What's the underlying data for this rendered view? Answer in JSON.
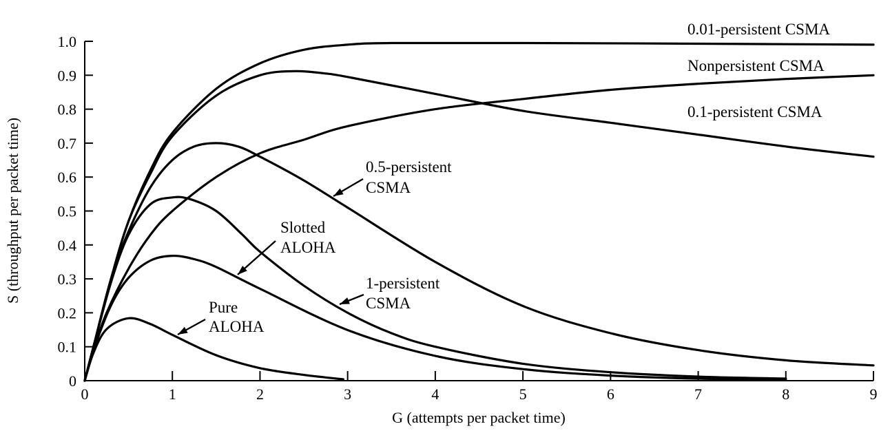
{
  "chart_data": {
    "type": "line",
    "xlabel": "G (attempts  per packet time)",
    "ylabel": "S (throughput  per packet  time)",
    "xlim": [
      0,
      9
    ],
    "ylim": [
      0,
      1.0
    ],
    "x_ticks": [
      "0",
      "1",
      "2",
      "3",
      "4",
      "5",
      "6",
      "7",
      "8",
      "9"
    ],
    "y_ticks": [
      "0",
      "0.1",
      "0.2",
      "0.3",
      "0.4",
      "0.5",
      "0.6",
      "0.7",
      "0.8",
      "0.9",
      "1.0"
    ],
    "grid": false,
    "series": [
      {
        "name": "Pure ALOHA",
        "label_lines": [
          "Pure",
          "ALOHA"
        ],
        "points": [
          [
            0,
            0
          ],
          [
            0.1,
            0.082
          ],
          [
            0.25,
            0.152
          ],
          [
            0.5,
            0.184
          ],
          [
            0.75,
            0.167
          ],
          [
            1.0,
            0.135
          ],
          [
            1.5,
            0.075
          ],
          [
            2.0,
            0.037
          ],
          [
            2.5,
            0.017
          ],
          [
            2.95,
            0.004
          ]
        ]
      },
      {
        "name": "Slotted ALOHA",
        "label_lines": [
          "Slotted",
          "ALOHA"
        ],
        "points": [
          [
            0,
            0
          ],
          [
            0.1,
            0.09
          ],
          [
            0.3,
            0.222
          ],
          [
            0.5,
            0.303
          ],
          [
            0.75,
            0.354
          ],
          [
            1.0,
            0.368
          ],
          [
            1.25,
            0.358
          ],
          [
            1.5,
            0.335
          ],
          [
            2.0,
            0.271
          ],
          [
            3.0,
            0.149
          ],
          [
            4.0,
            0.073
          ],
          [
            5.0,
            0.034
          ],
          [
            6.0,
            0.015
          ],
          [
            7.0,
            0.006
          ],
          [
            8.0,
            0.003
          ]
        ]
      },
      {
        "name": "1-persistent CSMA",
        "label_lines": [
          "1-persistent",
          "CSMA"
        ],
        "points": [
          [
            0,
            0
          ],
          [
            0.1,
            0.1
          ],
          [
            0.3,
            0.29
          ],
          [
            0.5,
            0.43
          ],
          [
            0.75,
            0.52
          ],
          [
            1.0,
            0.54
          ],
          [
            1.2,
            0.535
          ],
          [
            1.5,
            0.5
          ],
          [
            1.8,
            0.43
          ],
          [
            2.0,
            0.38
          ],
          [
            2.5,
            0.28
          ],
          [
            3.0,
            0.2
          ],
          [
            3.5,
            0.14
          ],
          [
            4.0,
            0.1
          ],
          [
            5.0,
            0.05
          ],
          [
            6.0,
            0.025
          ],
          [
            7.0,
            0.012
          ],
          [
            8.0,
            0.006
          ]
        ]
      },
      {
        "name": "0.5-persistent CSMA",
        "label_lines": [
          "0.5-persistent",
          "CSMA"
        ],
        "points": [
          [
            0,
            0
          ],
          [
            0.1,
            0.1
          ],
          [
            0.3,
            0.3
          ],
          [
            0.5,
            0.44
          ],
          [
            0.75,
            0.57
          ],
          [
            1.0,
            0.65
          ],
          [
            1.25,
            0.69
          ],
          [
            1.5,
            0.7
          ],
          [
            1.75,
            0.69
          ],
          [
            2.0,
            0.66
          ],
          [
            2.5,
            0.59
          ],
          [
            3.0,
            0.51
          ],
          [
            4.0,
            0.35
          ],
          [
            5.0,
            0.22
          ],
          [
            6.0,
            0.14
          ],
          [
            7.0,
            0.09
          ],
          [
            8.0,
            0.06
          ],
          [
            9.0,
            0.045
          ]
        ]
      },
      {
        "name": "Nonpersistent CSMA",
        "label_lines": [
          "Nonpersistent",
          "CSMA"
        ],
        "points": [
          [
            0,
            0
          ],
          [
            0.1,
            0.09
          ],
          [
            0.25,
            0.2
          ],
          [
            0.5,
            0.33
          ],
          [
            0.75,
            0.43
          ],
          [
            1.0,
            0.5
          ],
          [
            1.5,
            0.6
          ],
          [
            2.0,
            0.67
          ],
          [
            2.5,
            0.71
          ],
          [
            3.0,
            0.75
          ],
          [
            4.0,
            0.8
          ],
          [
            5.0,
            0.83
          ],
          [
            6.0,
            0.857
          ],
          [
            7.0,
            0.875
          ],
          [
            8.0,
            0.889
          ],
          [
            9.0,
            0.9
          ]
        ]
      },
      {
        "name": "0.1-persistent CSMA",
        "label_lines": [
          "0.1-persistent",
          "CSMA"
        ],
        "points": [
          [
            0,
            0
          ],
          [
            0.1,
            0.1
          ],
          [
            0.3,
            0.3
          ],
          [
            0.5,
            0.47
          ],
          [
            0.75,
            0.61
          ],
          [
            1.0,
            0.72
          ],
          [
            1.5,
            0.84
          ],
          [
            2.0,
            0.9
          ],
          [
            2.4,
            0.912
          ],
          [
            2.75,
            0.905
          ],
          [
            3.0,
            0.895
          ],
          [
            4.0,
            0.845
          ],
          [
            5.0,
            0.795
          ],
          [
            6.0,
            0.76
          ],
          [
            7.0,
            0.725
          ],
          [
            8.0,
            0.69
          ],
          [
            9.0,
            0.66
          ]
        ]
      },
      {
        "name": "0.01-persistent CSMA",
        "label_lines": [
          "0.01-persistent",
          "CSMA"
        ],
        "points": [
          [
            0,
            0
          ],
          [
            0.1,
            0.1
          ],
          [
            0.3,
            0.3
          ],
          [
            0.5,
            0.47
          ],
          [
            0.75,
            0.62
          ],
          [
            1.0,
            0.73
          ],
          [
            1.5,
            0.86
          ],
          [
            2.0,
            0.935
          ],
          [
            2.5,
            0.975
          ],
          [
            3.0,
            0.99
          ],
          [
            3.5,
            0.995
          ],
          [
            5.0,
            0.995
          ],
          [
            7.0,
            0.993
          ],
          [
            9.0,
            0.99
          ]
        ]
      }
    ]
  }
}
